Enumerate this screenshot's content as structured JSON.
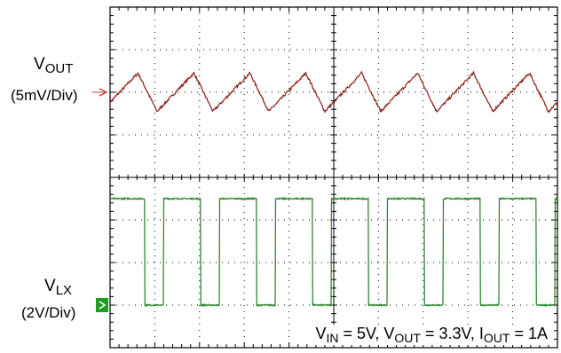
{
  "labels": {
    "ch1_name_main": "V",
    "ch1_name_sub": "OUT",
    "ch1_scale": "(5mV/Div)",
    "ch2_name_main": "V",
    "ch2_name_sub": "LX",
    "ch2_scale": "(2V/Div)",
    "cond": {
      "vin_main": "V",
      "vin_sub": "IN",
      "vin_val": " = 5V, ",
      "vout_main": "V",
      "vout_sub": "OUT",
      "vout_val": " = 3.3V, ",
      "iout_main": "I",
      "iout_sub": "OUT",
      "iout_val": " = 1A"
    }
  },
  "colors": {
    "vout": "#8b1a1a",
    "vlx": "#2e8b2e",
    "grid": "#000000",
    "marker_green": "#1e9e1e",
    "marker_red": "#c0392b"
  },
  "chart_data": {
    "type": "line",
    "grid": {
      "x_divisions": 10,
      "y_divisions": 8,
      "grid": "dotted"
    },
    "series": [
      {
        "name": "VOUT",
        "unit": "mV",
        "scale_per_div": 5,
        "baseline_div": 0,
        "y_range_div": [
          -0.5,
          0.45
        ],
        "cycles": 8,
        "period_div": 1.25,
        "ripple_pp_mV": 4.5
      },
      {
        "name": "VLX",
        "unit": "V",
        "scale_per_div": 2,
        "baseline_div": -3,
        "high_level_V": 5,
        "cycles": 8,
        "period_div": 1.25,
        "duty_cycle": 0.66
      }
    ]
  }
}
